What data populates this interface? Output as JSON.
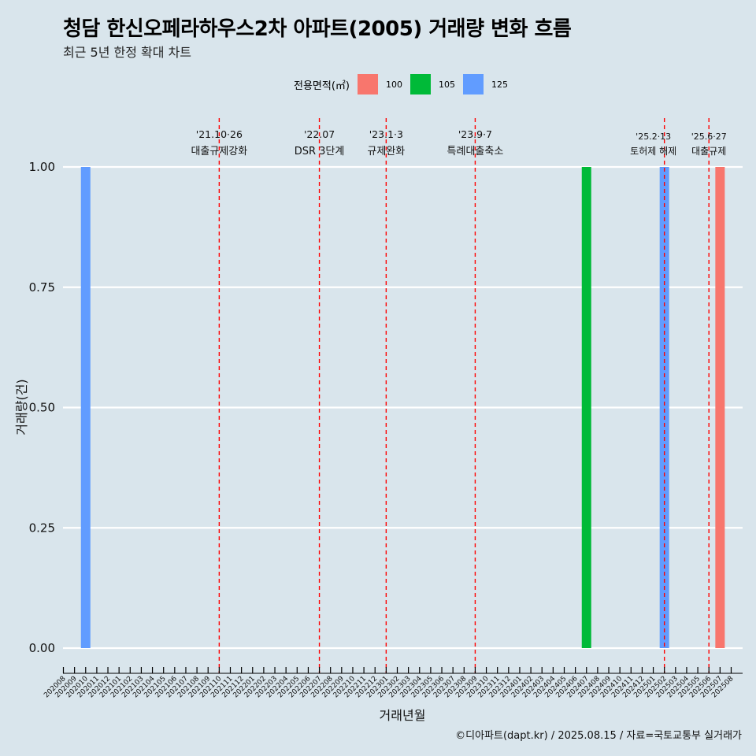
{
  "title": "청담 한신오페라하우스2차 아파트(2005) 거래량 변화 흐름",
  "subtitle": "최근 5년 한정 확대 차트",
  "caption": "©디아파트(dapt.kr) / 2025.08.15 / 자료=국토교통부 실거래가",
  "legend": {
    "title": "전용면적(㎡)",
    "items": [
      {
        "label": "100",
        "color": "#F8766D"
      },
      {
        "label": "105",
        "color": "#00BA38"
      },
      {
        "label": "125",
        "color": "#619CFF"
      }
    ]
  },
  "chart_data": {
    "type": "bar",
    "xlabel": "거래년월",
    "ylabel": "거래량(건)",
    "ylim": [
      0,
      1
    ],
    "yticks": [
      "0.00",
      "0.25",
      "0.50",
      "0.75",
      "1.00"
    ],
    "grid": "horizontal, white",
    "categories": [
      "202008",
      "202009",
      "202010",
      "202011",
      "202012",
      "202101",
      "202102",
      "202103",
      "202104",
      "202105",
      "202106",
      "202107",
      "202108",
      "202109",
      "202110",
      "202111",
      "202112",
      "202201",
      "202202",
      "202203",
      "202204",
      "202205",
      "202206",
      "202207",
      "202208",
      "202209",
      "202210",
      "202211",
      "202212",
      "202301",
      "202302",
      "202303",
      "202304",
      "202305",
      "202306",
      "202307",
      "202308",
      "202309",
      "202310",
      "202311",
      "202312",
      "202401",
      "202402",
      "202403",
      "202404",
      "202405",
      "202406",
      "202407",
      "202408",
      "202409",
      "202410",
      "202411",
      "202412",
      "202501",
      "202502",
      "202503",
      "202504",
      "202505",
      "202506",
      "202507",
      "202508"
    ],
    "bars": [
      {
        "month": "202010",
        "area": "125",
        "value": 1
      },
      {
        "month": "202407",
        "area": "105",
        "value": 1
      },
      {
        "month": "202502",
        "area": "125",
        "value": 1
      },
      {
        "month": "202507",
        "area": "100",
        "value": 1
      }
    ],
    "annotations": [
      {
        "month": "202110",
        "date": "'21.10·26",
        "label": "대출규제강화"
      },
      {
        "month": "202207",
        "date": "'22.07",
        "label": "DSR 3단계"
      },
      {
        "month": "202301",
        "date": "'23.1·3",
        "label": "규제완화"
      },
      {
        "month": "202309",
        "date": "'23.9·7",
        "label": "특례대출축소"
      },
      {
        "month": "202502",
        "date": "'25.2·13",
        "label": "토허제 해제"
      },
      {
        "month": "202506",
        "date": "'25.6·27",
        "label": "대출규제"
      }
    ]
  }
}
